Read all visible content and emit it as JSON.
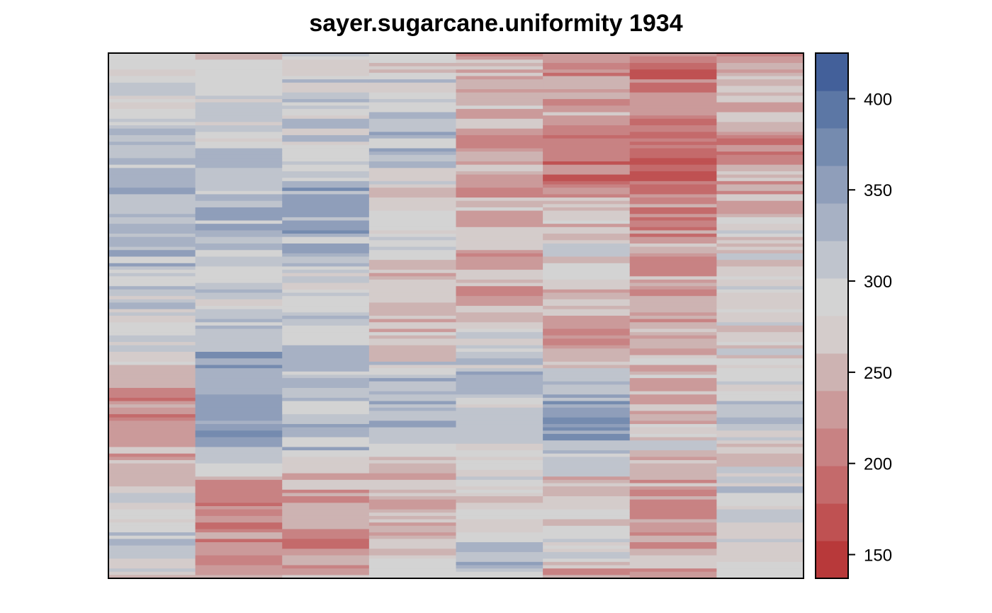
{
  "chart_data": {
    "type": "heatmap",
    "title": "sayer.sugarcane.uniformity 1934",
    "xlabel": "",
    "ylabel": "",
    "columns": 8,
    "rows": 160,
    "value_range": [
      137,
      425
    ],
    "colorbar": {
      "ticks": [
        150,
        200,
        250,
        300,
        350,
        400
      ],
      "tick_labels": [
        "150",
        "200",
        "250",
        "300",
        "350",
        "400"
      ],
      "placement": "right",
      "breaks": [
        137,
        157.6,
        178.1,
        198.7,
        219.3,
        239.9,
        260.4,
        281,
        301.6,
        322.1,
        342.7,
        363.3,
        383.9,
        404.4,
        425
      ],
      "colors": [
        "#b8393a",
        "#bf5152",
        "#c46a6b",
        "#c88283",
        "#cb9a9a",
        "#cdb3b2",
        "#d4cccb",
        "#d3d3d3",
        "#bfc4cd",
        "#a7b1c4",
        "#8f9eba",
        "#758baf",
        "#5c77a5",
        "#43609a",
        "#2e5395"
      ]
    },
    "column_profiles": [
      [
        270,
        275,
        290,
        300,
        310,
        305,
        320,
        325,
        320,
        315,
        330,
        335,
        340,
        330,
        310,
        315,
        300,
        290,
        285,
        280,
        260,
        240,
        230,
        225,
        215,
        220,
        250,
        265,
        275,
        285,
        290,
        300,
        300,
        295,
        285
      ],
      [
        270,
        265,
        285,
        280,
        290,
        280,
        290,
        300,
        315,
        320,
        325,
        320,
        330,
        310,
        315,
        300,
        285,
        290,
        310,
        335,
        340,
        355,
        350,
        345,
        360,
        340,
        300,
        255,
        230,
        215,
        205,
        205,
        215,
        225,
        240
      ],
      [
        285,
        290,
        300,
        310,
        305,
        290,
        300,
        320,
        330,
        335,
        340,
        345,
        330,
        320,
        310,
        300,
        305,
        310,
        320,
        300,
        290,
        305,
        320,
        330,
        335,
        320,
        310,
        265,
        245,
        225,
        215,
        215,
        220,
        230,
        240
      ],
      [
        270,
        280,
        295,
        300,
        310,
        320,
        330,
        315,
        300,
        270,
        280,
        300,
        310,
        300,
        255,
        240,
        230,
        245,
        260,
        280,
        300,
        330,
        350,
        340,
        360,
        320,
        285,
        260,
        250,
        240,
        240,
        250,
        260,
        270,
        275
      ],
      [
        240,
        255,
        250,
        260,
        250,
        230,
        245,
        250,
        240,
        245,
        255,
        240,
        250,
        235,
        245,
        240,
        250,
        260,
        270,
        280,
        300,
        330,
        320,
        300,
        310,
        305,
        290,
        285,
        280,
        270,
        265,
        270,
        310,
        380,
        300
      ],
      [
        230,
        225,
        230,
        240,
        245,
        215,
        220,
        205,
        210,
        225,
        240,
        255,
        270,
        290,
        275,
        240,
        230,
        250,
        245,
        230,
        260,
        310,
        330,
        345,
        370,
        350,
        300,
        260,
        250,
        270,
        280,
        290,
        300,
        260,
        215
      ],
      [
        200,
        195,
        205,
        210,
        200,
        195,
        190,
        200,
        205,
        215,
        225,
        220,
        230,
        235,
        240,
        245,
        230,
        225,
        235,
        245,
        255,
        265,
        255,
        250,
        260,
        270,
        275,
        250,
        240,
        230,
        225,
        230,
        235,
        240,
        250
      ],
      [
        230,
        240,
        250,
        245,
        235,
        230,
        220,
        225,
        240,
        250,
        260,
        270,
        280,
        290,
        295,
        300,
        290,
        280,
        270,
        275,
        280,
        290,
        300,
        310,
        300,
        290,
        280,
        285,
        290,
        300,
        295,
        290,
        285,
        280,
        270
      ]
    ],
    "row_variation": 70,
    "seed": 1934
  }
}
